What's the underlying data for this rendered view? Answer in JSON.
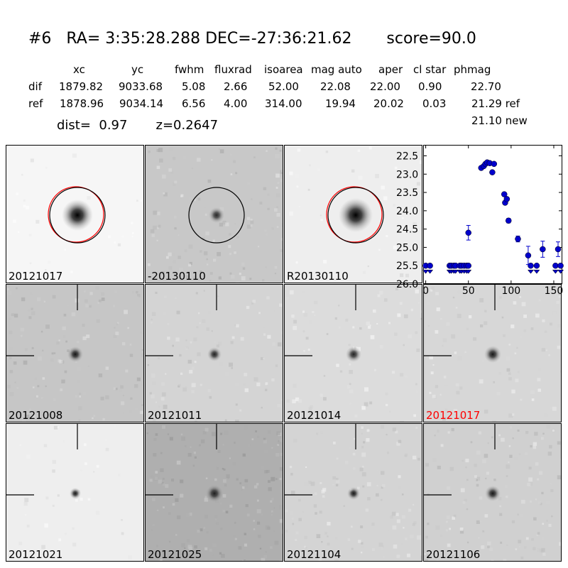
{
  "header": {
    "line1": "#6   RA= 3:35:28.288 DEC=-27:36:21.62       score=90.0",
    "columns": [
      "xc",
      "yc",
      "fwhm",
      "fluxrad",
      "isoarea",
      "mag auto",
      "aper",
      "cl star",
      "phmag"
    ],
    "rows": [
      {
        "label": "dif",
        "values": [
          "1879.82",
          "9033.68",
          "5.08",
          "2.66",
          "52.00",
          "22.08",
          "22.00",
          "0.90",
          "22.70"
        ]
      },
      {
        "label": "ref",
        "values": [
          "1878.96",
          "9034.14",
          "6.56",
          "4.00",
          "314.00",
          "19.94",
          "20.02",
          "0.03",
          "21.29 ref"
        ]
      }
    ],
    "phmag_new": "21.10 new",
    "dist_line": "dist=  0.97       z=0.2647"
  },
  "stamps": [
    {
      "label": "20121017",
      "bg": 246,
      "blob": 1.0,
      "blobR": 22,
      "noise": 0.02,
      "circle": true,
      "red": true,
      "marks": false
    },
    {
      "label": "-20130110",
      "bg": 200,
      "blob": 0.8,
      "blobR": 11,
      "noise": 0.1,
      "circle": true,
      "red": false,
      "marks": false
    },
    {
      "label": "R20130110",
      "bg": 238,
      "blob": 1.0,
      "blobR": 24,
      "noise": 0.03,
      "circle": true,
      "red": true,
      "marks": false
    },
    {
      "label": "20121008",
      "bg": 198,
      "blob": 0.9,
      "blobR": 11,
      "noise": 0.1,
      "marks": true
    },
    {
      "label": "20121011",
      "bg": 212,
      "blob": 0.85,
      "blobR": 10,
      "noise": 0.08,
      "marks": true
    },
    {
      "label": "20121014",
      "bg": 220,
      "blob": 0.85,
      "blobR": 11,
      "noise": 0.07,
      "marks": true
    },
    {
      "label": "20121017",
      "bg": 215,
      "blob": 0.9,
      "blobR": 12,
      "noise": 0.08,
      "marks": true,
      "labelColor": "#ff0000"
    },
    {
      "label": "20121021",
      "bg": 238,
      "blob": 0.9,
      "blobR": 8,
      "noise": 0.03,
      "marks": true
    },
    {
      "label": "20121025",
      "bg": 175,
      "blob": 0.85,
      "blobR": 12,
      "noise": 0.13,
      "marks": true
    },
    {
      "label": "20121104",
      "bg": 212,
      "blob": 0.9,
      "blobR": 9,
      "noise": 0.1,
      "marks": true
    },
    {
      "label": "20121106",
      "bg": 208,
      "blob": 0.9,
      "blobR": 11,
      "noise": 0.11,
      "marks": true
    }
  ],
  "chart_data": {
    "type": "scatter",
    "title": "",
    "xlabel": "",
    "ylabel": "",
    "xlim": [
      -3,
      160
    ],
    "ylim": [
      26.0,
      22.2
    ],
    "yaxis_inverted": true,
    "xticks": [
      0,
      50,
      100,
      150
    ],
    "yticks": [
      22.5,
      23.0,
      23.5,
      24.0,
      24.5,
      25.0,
      25.5,
      26.0
    ],
    "color": "#0000cc",
    "points": [
      {
        "x": 50,
        "y": 24.6,
        "err": 0.2
      },
      {
        "x": 65,
        "y": 22.83,
        "err": 0.04
      },
      {
        "x": 68,
        "y": 22.78,
        "err": 0.04
      },
      {
        "x": 70,
        "y": 22.72,
        "err": 0.04
      },
      {
        "x": 72,
        "y": 22.68,
        "err": 0.04
      },
      {
        "x": 75,
        "y": 22.7,
        "err": 0.04
      },
      {
        "x": 78,
        "y": 22.95,
        "err": 0.04
      },
      {
        "x": 80,
        "y": 22.72,
        "err": 0.04
      },
      {
        "x": 92,
        "y": 23.55,
        "err": 0.05
      },
      {
        "x": 93,
        "y": 23.78,
        "err": 0.05
      },
      {
        "x": 95,
        "y": 23.68,
        "err": 0.05
      },
      {
        "x": 97,
        "y": 24.27,
        "err": 0.06
      },
      {
        "x": 108,
        "y": 24.77,
        "err": 0.08
      },
      {
        "x": 120,
        "y": 25.22,
        "err": 0.25
      },
      {
        "x": 137,
        "y": 25.05,
        "err": 0.22
      },
      {
        "x": 155,
        "y": 25.05,
        "err": 0.2
      }
    ],
    "upper_limits": [
      {
        "x": 0,
        "y": 25.5
      },
      {
        "x": 5,
        "y": 25.5
      },
      {
        "x": 28,
        "y": 25.5
      },
      {
        "x": 30,
        "y": 25.5
      },
      {
        "x": 33,
        "y": 25.5
      },
      {
        "x": 35,
        "y": 25.5
      },
      {
        "x": 40,
        "y": 25.5
      },
      {
        "x": 42,
        "y": 25.5
      },
      {
        "x": 45,
        "y": 25.5
      },
      {
        "x": 48,
        "y": 25.5
      },
      {
        "x": 50,
        "y": 25.5
      },
      {
        "x": 123,
        "y": 25.5
      },
      {
        "x": 130,
        "y": 25.5
      },
      {
        "x": 152,
        "y": 25.5
      },
      {
        "x": 158,
        "y": 25.5
      }
    ]
  }
}
